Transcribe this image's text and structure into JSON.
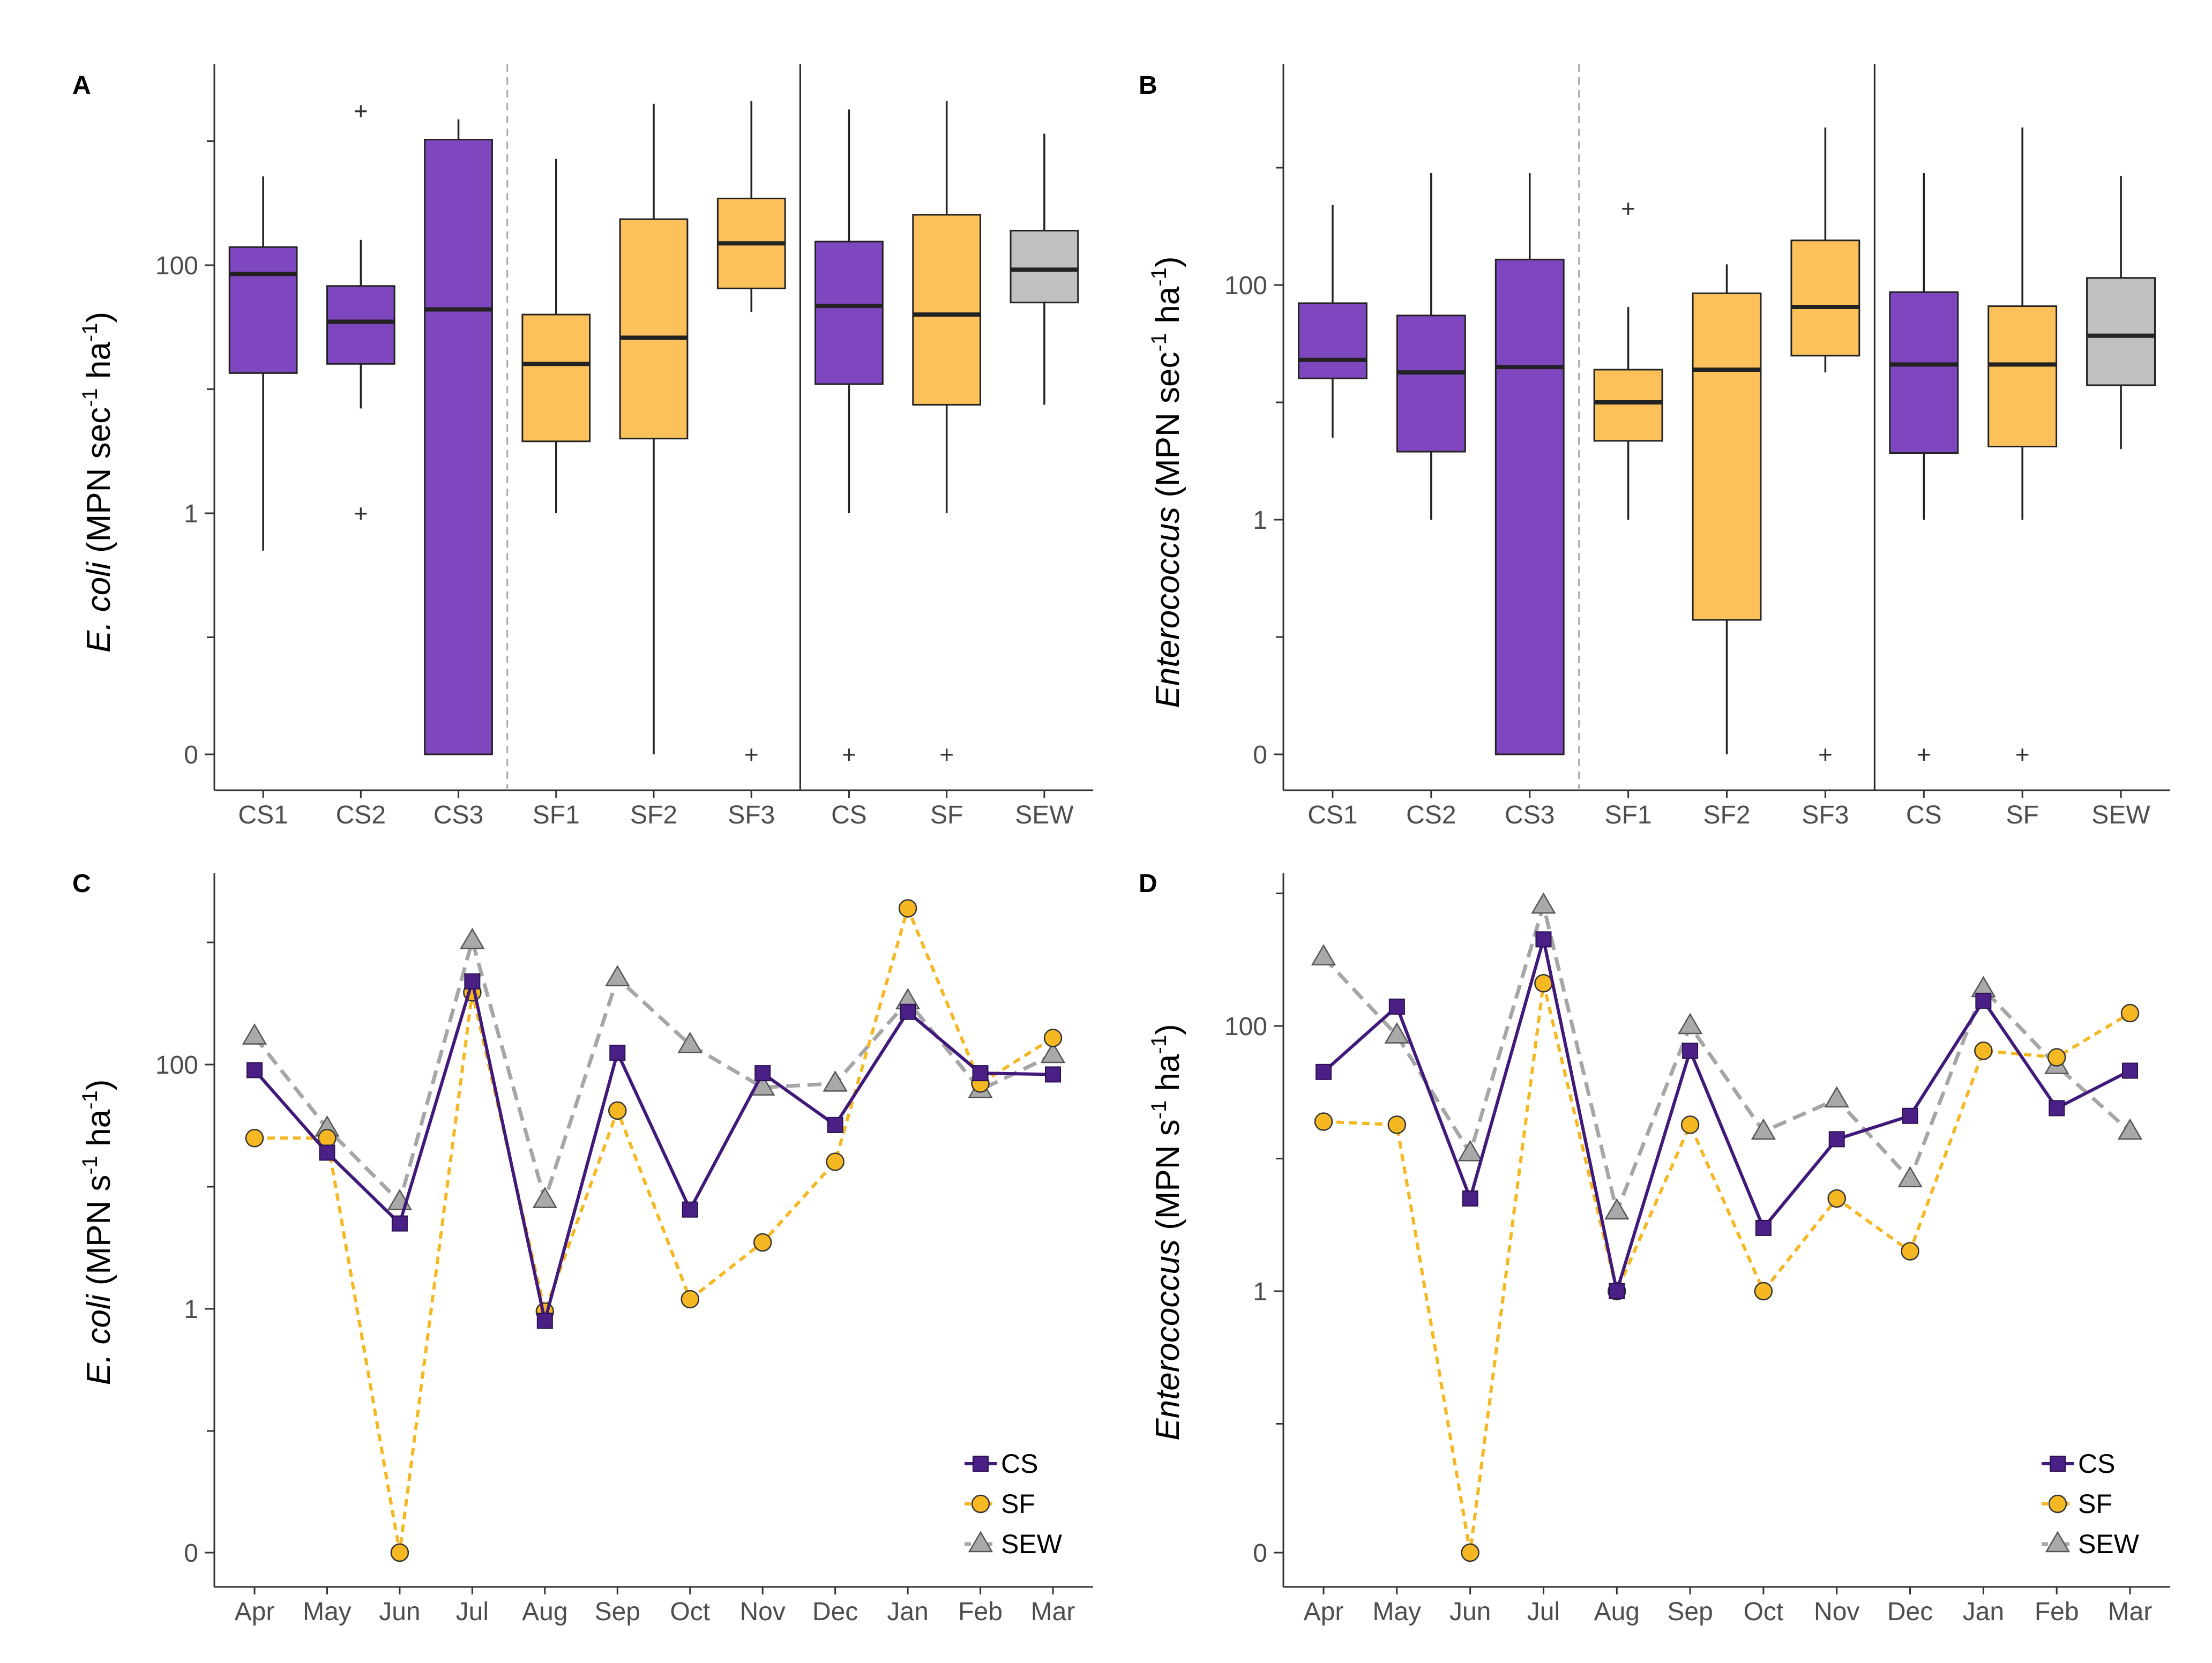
{
  "figure": {
    "colors": {
      "CS": "#7f47bf",
      "SF": "#fcc15a",
      "SEW": "#c0c0c0",
      "CS_line": "#40197a",
      "SF_line": "#f6b822",
      "SEW_line": "#a6a6a6"
    }
  },
  "chart_data": [
    {
      "id": "A",
      "type": "box",
      "panel_label": "A",
      "ylabel_italic": "E. coli",
      "ylabel_rest": " (MPN sec",
      "ylabel_sup1": "-1",
      "ylabel_mid": " ha",
      "ylabel_sup2": "-1",
      "ylabel_end": ")",
      "yscale": "log",
      "yticks": [
        "0",
        "1",
        "100"
      ],
      "categories": [
        "CS1",
        "CS2",
        "CS3",
        "SF1",
        "SF2",
        "SF3",
        "CS",
        "SF",
        "SEW"
      ],
      "boxes": [
        {
          "cat": "CS1",
          "group": "CS",
          "min": 0.5,
          "q1": 13.5,
          "median": 85,
          "q3": 140,
          "max": 520,
          "outliers": []
        },
        {
          "cat": "CS2",
          "group": "CS",
          "min": 7,
          "q1": 16,
          "median": 35,
          "q3": 68,
          "max": 160,
          "outliers": [
            1750,
            1
          ]
        },
        {
          "cat": "CS3",
          "group": "CS",
          "min": 0,
          "q1": 0,
          "median": 44,
          "q3": 1030,
          "max": 1500,
          "outliers": []
        },
        {
          "cat": "SF1",
          "group": "SF",
          "min": 1,
          "q1": 3.8,
          "median": 16,
          "q3": 40,
          "max": 720,
          "outliers": []
        },
        {
          "cat": "SF2",
          "group": "SF",
          "min": 0,
          "q1": 4,
          "median": 26,
          "q3": 235,
          "max": 2000,
          "outliers": []
        },
        {
          "cat": "SF3",
          "group": "SF",
          "min": 42,
          "q1": 65,
          "median": 150,
          "q3": 345,
          "max": 2100,
          "outliers": [
            0
          ]
        },
        {
          "cat": "CS",
          "group": "CS",
          "min": 1,
          "q1": 11,
          "median": 47,
          "q3": 155,
          "max": 1800,
          "outliers": [
            0
          ]
        },
        {
          "cat": "SF",
          "group": "SF",
          "min": 1,
          "q1": 7.5,
          "median": 40,
          "q3": 255,
          "max": 2100,
          "outliers": [
            0
          ]
        },
        {
          "cat": "SEW",
          "group": "SEW",
          "min": 7.5,
          "q1": 50,
          "median": 92,
          "q3": 190,
          "max": 1150,
          "outliers": []
        }
      ]
    },
    {
      "id": "B",
      "type": "box",
      "panel_label": "B",
      "ylabel_italic": "Enterococcus",
      "ylabel_rest": " (MPN sec",
      "ylabel_sup1": "-1",
      "ylabel_mid": " ha",
      "ylabel_sup2": "-1",
      "ylabel_end": ")",
      "yscale": "log",
      "yticks": [
        "0",
        "1",
        "100"
      ],
      "categories": [
        "CS1",
        "CS2",
        "CS3",
        "SF1",
        "SF2",
        "SF3",
        "CS",
        "SF",
        "SEW"
      ],
      "boxes": [
        {
          "cat": "CS1",
          "group": "CS",
          "min": 5,
          "q1": 16,
          "median": 23,
          "q3": 70,
          "max": 480,
          "outliers": []
        },
        {
          "cat": "CS2",
          "group": "CS",
          "min": 1,
          "q1": 3.8,
          "median": 18,
          "q3": 55,
          "max": 900,
          "outliers": []
        },
        {
          "cat": "CS3",
          "group": "CS",
          "min": 0,
          "q1": 0,
          "median": 20,
          "q3": 165,
          "max": 900,
          "outliers": []
        },
        {
          "cat": "SF1",
          "group": "SF",
          "min": 1,
          "q1": 4.7,
          "median": 10,
          "q3": 19,
          "max": 65,
          "outliers": [
            450
          ]
        },
        {
          "cat": "SF2",
          "group": "SF",
          "min": 0,
          "q1": 0.14,
          "median": 19,
          "q3": 85,
          "max": 150,
          "outliers": []
        },
        {
          "cat": "SF3",
          "group": "SF",
          "min": 18,
          "q1": 25,
          "median": 65,
          "q3": 240,
          "max": 2200,
          "outliers": [
            0
          ]
        },
        {
          "cat": "CS",
          "group": "CS",
          "min": 1,
          "q1": 3.7,
          "median": 21,
          "q3": 87,
          "max": 900,
          "outliers": [
            0
          ]
        },
        {
          "cat": "SF",
          "group": "SF",
          "min": 1,
          "q1": 4.2,
          "median": 21,
          "q3": 66,
          "max": 2200,
          "outliers": [
            0
          ]
        },
        {
          "cat": "SEW",
          "group": "SEW",
          "min": 4,
          "q1": 14,
          "median": 37,
          "q3": 115,
          "max": 850,
          "outliers": []
        }
      ]
    },
    {
      "id": "C",
      "type": "line",
      "panel_label": "C",
      "ylabel_italic": "E. coli",
      "ylabel_rest": " (MPN s",
      "ylabel_sup1": "-1",
      "ylabel_mid": " ha",
      "ylabel_sup2": "-1",
      "ylabel_end": ")",
      "yscale": "log",
      "yticks": [
        "0",
        "1",
        "100"
      ],
      "categories": [
        "Apr",
        "May",
        "Jun",
        "Jul",
        "Aug",
        "Sep",
        "Oct",
        "Nov",
        "Dec",
        "Jan",
        "Feb",
        "Mar"
      ],
      "series": [
        {
          "name": "CS",
          "marker": "square",
          "dash": false,
          "values": [
            90,
            19,
            5,
            480,
            0.8,
            125,
            6.5,
            85,
            32,
            270,
            85,
            83
          ]
        },
        {
          "name": "SF",
          "marker": "circle",
          "dash": true,
          "values": [
            25,
            25,
            0,
            390,
            0.95,
            42,
            1.2,
            3.5,
            16,
            1900,
            70,
            165
          ]
        },
        {
          "name": "SEW",
          "marker": "triangle",
          "dash": true,
          "values": [
            170,
            30,
            7.5,
            1030,
            7.8,
            510,
            145,
            65,
            70,
            330,
            62,
            120
          ]
        }
      ],
      "legend": [
        "CS",
        "SF",
        "SEW"
      ]
    },
    {
      "id": "D",
      "type": "line",
      "panel_label": "D",
      "ylabel_italic": "Enterococcus",
      "ylabel_rest": " (MPN s",
      "ylabel_sup1": "-1",
      "ylabel_mid": " ha",
      "ylabel_sup2": "-1",
      "ylabel_end": ")",
      "yscale": "log",
      "yticks": [
        "0",
        "1",
        "100"
      ],
      "categories": [
        "Apr",
        "May",
        "Jun",
        "Jul",
        "Aug",
        "Sep",
        "Oct",
        "Nov",
        "Dec",
        "Jan",
        "Feb",
        "Mar"
      ],
      "series": [
        {
          "name": "CS",
          "marker": "square",
          "dash": false,
          "values": [
            45,
            140,
            5,
            450,
            1,
            65,
            3,
            14,
            21,
            155,
            24,
            46
          ]
        },
        {
          "name": "SF",
          "marker": "circle",
          "dash": true,
          "values": [
            19,
            18,
            0,
            210,
            1,
            18,
            1,
            5,
            2,
            65,
            58,
            125
          ]
        },
        {
          "name": "SEW",
          "marker": "triangle",
          "dash": true,
          "values": [
            330,
            85,
            11,
            810,
            4,
            100,
            16,
            28,
            7,
            190,
            50,
            16
          ]
        }
      ],
      "legend": [
        "CS",
        "SF",
        "SEW"
      ]
    }
  ]
}
